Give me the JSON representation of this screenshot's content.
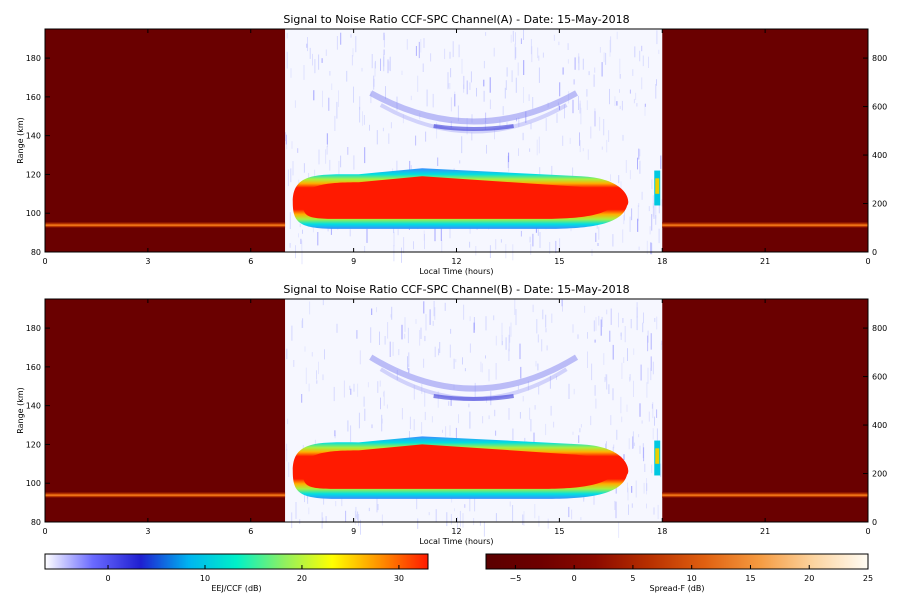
{
  "chart_data": [
    {
      "type": "heatmap",
      "title": "Signal to Noise Ratio CCF-SPC Channel(A) - Date: 15-May-2018",
      "xlabel": "Local Time (hours)",
      "ylabel": "Range (km)",
      "xlim": [
        0,
        24
      ],
      "x_tick_labels": [
        "0",
        "3",
        "6",
        "9",
        "12",
        "15",
        "18",
        "21",
        "0"
      ],
      "ylim": [
        80,
        195
      ],
      "y_ticks": [
        80,
        100,
        120,
        140,
        160,
        180
      ],
      "y2lim": [
        0,
        920
      ],
      "y2_ticks": [
        0,
        200,
        400,
        600,
        800
      ],
      "night_windows_hours": [
        [
          0,
          7.0
        ],
        [
          18.0,
          24
        ]
      ],
      "features": {
        "eej_core": {
          "start_hour": 7.4,
          "end_hour": 16.8,
          "min_km": 95,
          "max_km": 117
        },
        "arc_echo": {
          "start_hour": 9.5,
          "end_hour": 15.5,
          "top_km": 162,
          "bottom_km": 146
        },
        "night_layer_km": 94
      }
    },
    {
      "type": "heatmap",
      "title": "Signal to Noise Ratio CCF-SPC Channel(B) - Date: 15-May-2018",
      "xlabel": "Local Time (hours)",
      "ylabel": "Range (km)",
      "xlim": [
        0,
        24
      ],
      "x_tick_labels": [
        "0",
        "3",
        "6",
        "9",
        "12",
        "15",
        "18",
        "21",
        "0"
      ],
      "ylim": [
        80,
        195
      ],
      "y_ticks": [
        80,
        100,
        120,
        140,
        160,
        180
      ],
      "y2lim": [
        0,
        920
      ],
      "y2_ticks": [
        0,
        200,
        400,
        600,
        800
      ],
      "night_windows_hours": [
        [
          0,
          7.0
        ],
        [
          18.0,
          24
        ]
      ],
      "features": {
        "eej_core": {
          "start_hour": 7.4,
          "end_hour": 16.8,
          "min_km": 95,
          "max_km": 118
        },
        "arc_echo": {
          "start_hour": 9.5,
          "end_hour": 15.5,
          "top_km": 165,
          "bottom_km": 146
        },
        "night_layer_km": 94
      }
    }
  ],
  "colorbars": [
    {
      "label": "EEJ/CCF (dB)",
      "range": [
        -6.5,
        33
      ],
      "ticks": [
        0,
        10,
        20,
        30
      ],
      "colors": [
        "#ffffff",
        "#6a6aff",
        "#1f1fd0",
        "#00b4f0",
        "#00f0c8",
        "#90f060",
        "#ffff00",
        "#ff9000",
        "#ff1a00"
      ]
    },
    {
      "label": "Spread-F (dB)",
      "range": [
        -7.5,
        25
      ],
      "ticks": [
        -5,
        0,
        5,
        10,
        15,
        20,
        25
      ],
      "colors": [
        "#5a0000",
        "#6e0000",
        "#8c0a00",
        "#b83000",
        "#e06010",
        "#f59a40",
        "#fcd4a0",
        "#fffcf4"
      ]
    }
  ]
}
